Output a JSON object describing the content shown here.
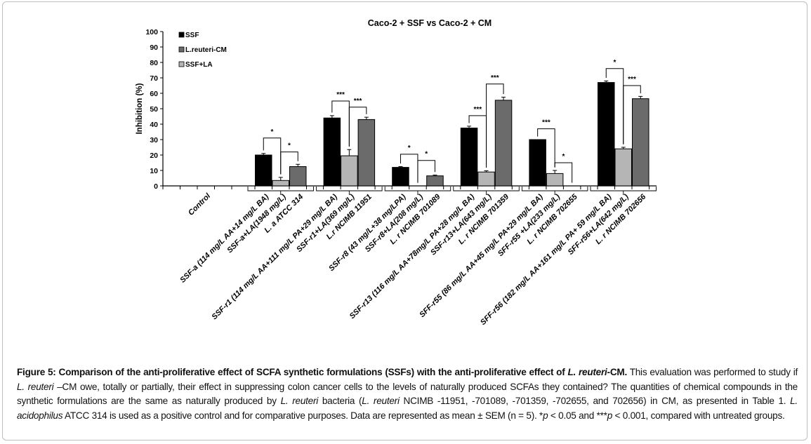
{
  "chart_data": {
    "type": "bar",
    "title": "Caco-2 +  SSF  vs  Caco-2 + CM",
    "ylabel": "Inhibition (%)",
    "xlabel": "",
    "ylim": [
      0,
      100
    ],
    "yticks": [
      "0",
      "10",
      "20",
      "30",
      "40",
      "50",
      "60",
      "70",
      "80",
      "90",
      "100"
    ],
    "legend_position": "top-left",
    "legend": [
      {
        "name": "SSF",
        "color": "#000000"
      },
      {
        "name": "L.reuteri-CM",
        "color": "#6b6b6b"
      },
      {
        "name": "SSF+LA",
        "color": "#b5b5b5"
      }
    ],
    "control_label": "Control",
    "groups": [
      {
        "labels": [
          "SSF-a (114 mg/L AA+14 mg/L BA)",
          "SSF-a+LA(1948 mg/L)",
          "L. a ATCC 314"
        ],
        "values": [
          20,
          3.5,
          12.5
        ],
        "errors": [
          1,
          2,
          1.5
        ],
        "sig": [
          {
            "pair": [
              0,
              1
            ],
            "level": 31,
            "label": "*"
          },
          {
            "pair": [
              1,
              2
            ],
            "level": 22,
            "label": "*"
          }
        ]
      },
      {
        "labels": [
          "SSF-r1 (114 mg/L AA+111 mg/L PA+29 mg/L BA)",
          "SSF-r1+LA(369 mg/L)",
          "L.r NCIMB 11951"
        ],
        "values": [
          44,
          19.5,
          43
        ],
        "errors": [
          1.5,
          4,
          1.5
        ],
        "sig": [
          {
            "pair": [
              0,
              1
            ],
            "level": 55,
            "label": "***"
          },
          {
            "pair": [
              1,
              2
            ],
            "level": 51,
            "label": "***"
          }
        ]
      },
      {
        "labels": [
          "SSF-r8 (43 mg/L+38 mg/LPA)",
          "SSF-r8+LA(208 mg/L)",
          "L. r NCIMB 701089"
        ],
        "values": [
          12,
          0,
          6.5
        ],
        "errors": [
          0.5,
          0,
          0.5
        ],
        "sig": [
          {
            "pair": [
              0,
              1
            ],
            "level": 20.5,
            "label": "*"
          },
          {
            "pair": [
              1,
              2
            ],
            "level": 16.5,
            "label": "*"
          }
        ]
      },
      {
        "labels": [
          "SSF-r13 (116 mg/L AA+78mg/L PA+28 mg/L BA)",
          "SSF-r13+LA(643 mg/L)",
          "L. r NCIMB 701359"
        ],
        "values": [
          37.5,
          9,
          55.5
        ],
        "errors": [
          1.2,
          0.8,
          2
        ],
        "sig": [
          {
            "pair": [
              0,
              1
            ],
            "level": 45.5,
            "label": "***"
          },
          {
            "pair": [
              1,
              2
            ],
            "level": 66,
            "label": "***"
          }
        ]
      },
      {
        "labels": [
          "SFF-r55 (86 mg/L AA+45 mg/L PA+29 mg/L BA)",
          "SFF-r55 +LA(233 mg/L)",
          "L. r NCIMB 702655"
        ],
        "values": [
          30,
          8,
          0
        ],
        "errors": [
          0,
          2,
          0
        ],
        "sig": [
          {
            "pair": [
              0,
              1
            ],
            "level": 37,
            "label": "***"
          },
          {
            "pair": [
              1,
              2
            ],
            "level": 15,
            "label": "*"
          }
        ]
      },
      {
        "labels": [
          "SFF-r56 (182 mg/L AA+161 mg/L PA+ 59 mg/L BA)",
          "SFF-r56+LA(642 mg/L)",
          "L. r NCIMB 702656"
        ],
        "values": [
          67,
          24,
          56.5
        ],
        "errors": [
          1,
          1,
          1.5
        ],
        "sig": [
          {
            "pair": [
              0,
              1
            ],
            "level": 76,
            "label": "*"
          },
          {
            "pair": [
              1,
              2
            ],
            "level": 65,
            "label": "***"
          }
        ]
      }
    ],
    "bar_colors": [
      "#000000",
      "#b5b5b5",
      "#6b6b6b"
    ]
  },
  "caption": [
    {
      "t": "Figure 5: Comparison of the anti-proliferative effect of SCFA synthetic formulations (SSFs) with the anti-proliferative effect of ",
      "b": true
    },
    {
      "t": "L. reuteri",
      "b": true,
      "i": true
    },
    {
      "t": "-CM.",
      "b": true
    },
    {
      "t": " This evaluation was performed to study if "
    },
    {
      "t": "L. reuteri",
      "i": true
    },
    {
      "t": " –CM owe, totally or partially, their effect in suppressing colon cancer cells to the levels of naturally produced SCFAs they contained? The quantities of chemical compounds in the synthetic formulations are the same as naturally produced by "
    },
    {
      "t": "L. reuteri",
      "i": true
    },
    {
      "t": " bacteria ("
    },
    {
      "t": "L. reuteri",
      "i": true
    },
    {
      "t": " NCIMB -11951, -701089, -701359, -702655, and 702656) in CM, as presented in Table 1. "
    },
    {
      "t": "L. acidophilus",
      "i": true
    },
    {
      "t": " ATCC 314 is used as a positive control and for comparative purposes. Data are represented as mean ± SEM (n = 5). *"
    },
    {
      "t": "p",
      "i": true
    },
    {
      "t": " < 0.05 and ***"
    },
    {
      "t": "p",
      "i": true
    },
    {
      "t": " < 0.001, compared with untreated groups."
    }
  ]
}
